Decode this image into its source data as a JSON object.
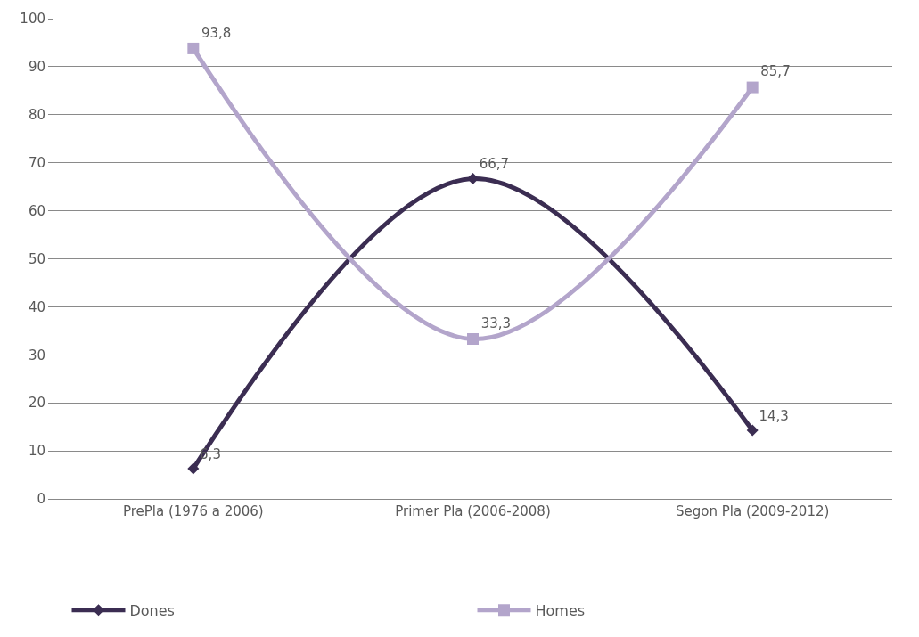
{
  "chart_data": {
    "type": "line",
    "categories": [
      "PrePla (1976 a 2006)",
      "Primer Pla (2006-2008)",
      "Segon Pla (2009-2012)"
    ],
    "series": [
      {
        "name": "Dones",
        "color": "#3b2d52",
        "values": [
          6.3,
          66.7,
          14.3
        ],
        "value_labels": [
          "6,3",
          "66,7",
          "14,3"
        ],
        "marker": "diamond"
      },
      {
        "name": "Homes",
        "color": "#b3a5cb",
        "values": [
          93.8,
          33.3,
          85.7
        ],
        "value_labels": [
          "93,8",
          "33,3",
          "85,7"
        ],
        "marker": "square"
      }
    ],
    "ylim": [
      0,
      100
    ],
    "yticks": [
      0,
      10,
      20,
      30,
      40,
      50,
      60,
      70,
      80,
      90,
      100
    ],
    "grid": "y",
    "legend": "bottom",
    "line_style": "solid"
  }
}
